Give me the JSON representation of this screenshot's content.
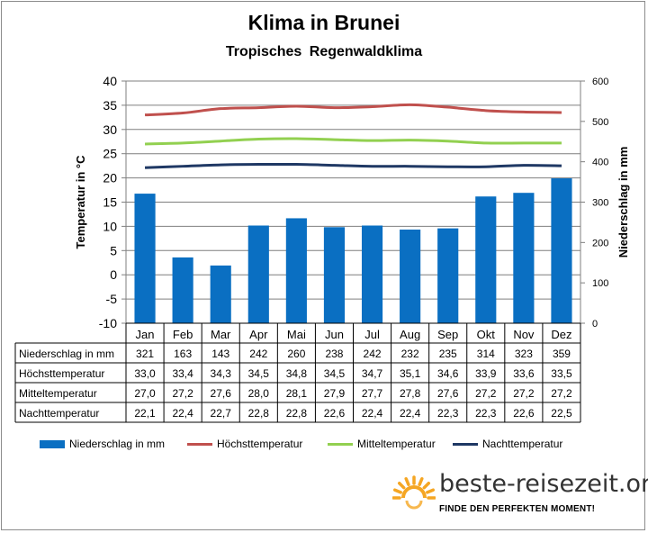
{
  "title": "Klima in Brunei",
  "subtitle": "Tropisches Regenwaldklima",
  "chart_data": {
    "type": "bar+line",
    "categories": [
      "Jan",
      "Feb",
      "Mar",
      "Apr",
      "Mai",
      "Jun",
      "Jul",
      "Aug",
      "Sep",
      "Okt",
      "Nov",
      "Dez"
    ],
    "y_left": {
      "label": "Temperatur in °C",
      "range": [
        -10,
        40
      ],
      "ticks": [
        "-10",
        "-5",
        "0",
        "5",
        "10",
        "15",
        "20",
        "25",
        "30",
        "35",
        "40"
      ]
    },
    "y_right": {
      "label": "Niederschlag in mm",
      "range": [
        0,
        600
      ],
      "ticks": [
        "0",
        "100",
        "200",
        "300",
        "400",
        "500",
        "600"
      ]
    },
    "grid": true,
    "legend_position": "bottom",
    "series": [
      {
        "name": "Niederschlag in mm",
        "type": "bar",
        "axis": "right",
        "color": "#0A6FC2",
        "values": [
          321,
          163,
          143,
          242,
          260,
          238,
          242,
          232,
          235,
          314,
          323,
          359
        ],
        "labels": [
          "321",
          "163",
          "143",
          "242",
          "260",
          "238",
          "242",
          "232",
          "235",
          "314",
          "323",
          "359"
        ]
      },
      {
        "name": "Höchsttemperatur",
        "type": "line",
        "axis": "left",
        "color": "#C0504D",
        "values": [
          33.0,
          33.4,
          34.3,
          34.5,
          34.8,
          34.5,
          34.7,
          35.1,
          34.6,
          33.9,
          33.6,
          33.5
        ],
        "labels": [
          "33,0",
          "33,4",
          "34,3",
          "34,5",
          "34,8",
          "34,5",
          "34,7",
          "35,1",
          "34,6",
          "33,9",
          "33,6",
          "33,5"
        ]
      },
      {
        "name": "Mitteltemperatur",
        "type": "line",
        "axis": "left",
        "color": "#92D050",
        "values": [
          27.0,
          27.2,
          27.6,
          28.0,
          28.1,
          27.9,
          27.7,
          27.8,
          27.6,
          27.2,
          27.2,
          27.2
        ],
        "labels": [
          "27,0",
          "27,2",
          "27,6",
          "28,0",
          "28,1",
          "27,9",
          "27,7",
          "27,8",
          "27,6",
          "27,2",
          "27,2",
          "27,2"
        ]
      },
      {
        "name": "Nachttemperatur",
        "type": "line",
        "axis": "left",
        "color": "#1F3864",
        "values": [
          22.1,
          22.4,
          22.7,
          22.8,
          22.8,
          22.6,
          22.4,
          22.4,
          22.3,
          22.3,
          22.6,
          22.5
        ],
        "labels": [
          "22,1",
          "22,4",
          "22,7",
          "22,8",
          "22,8",
          "22,6",
          "22,4",
          "22,4",
          "22,3",
          "22,3",
          "22,6",
          "22,5"
        ]
      }
    ]
  },
  "logo": {
    "name": "beste-reisezeit.org",
    "slogan": "FINDE DEN PERFEKTEN MOMENT!",
    "icon": "sun-icon",
    "color": "#F5A623"
  }
}
